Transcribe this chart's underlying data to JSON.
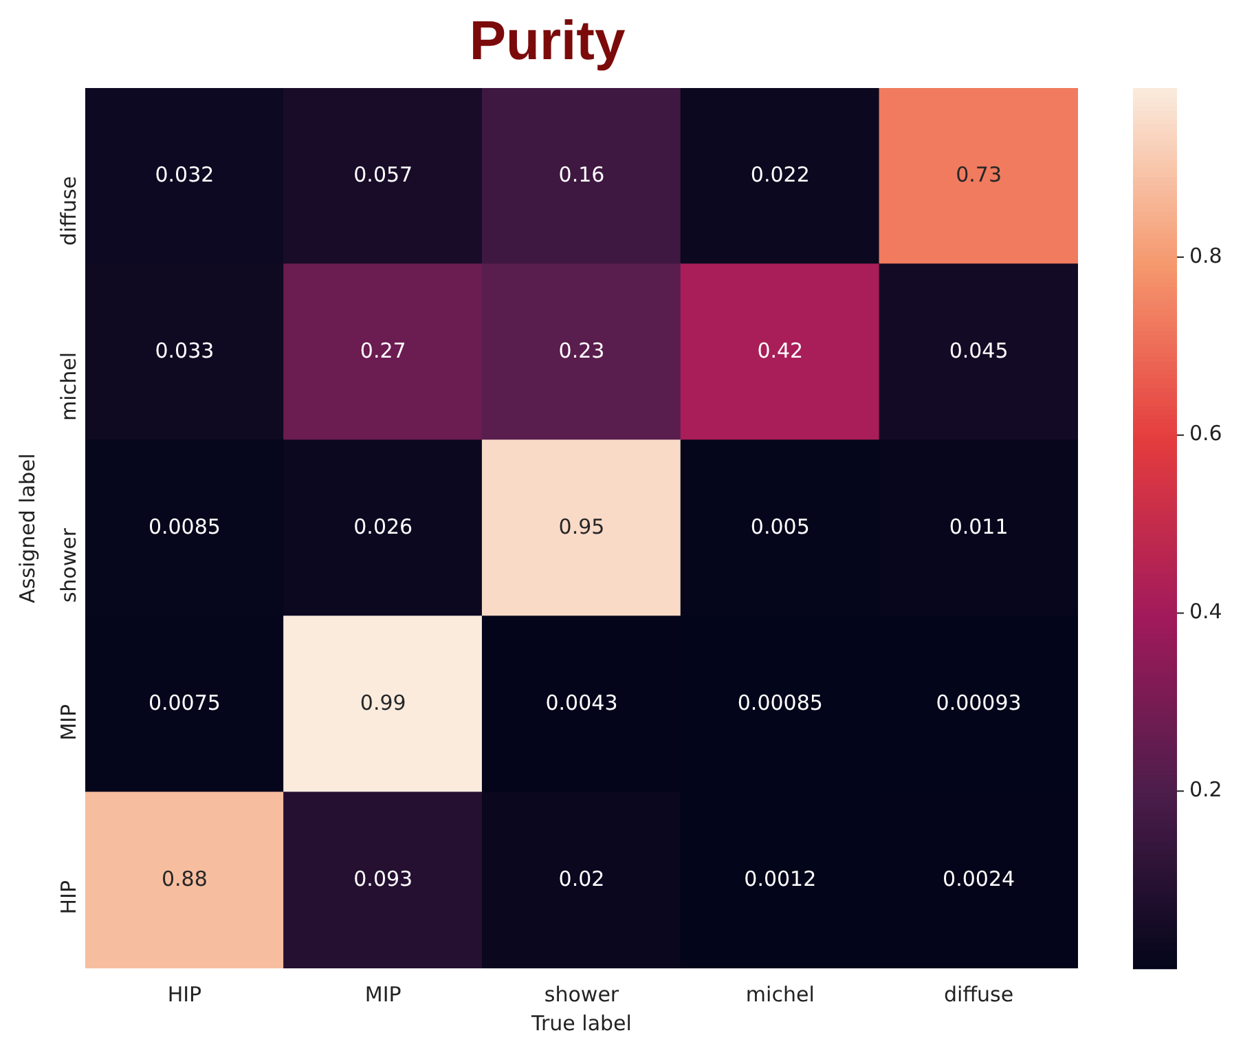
{
  "chart_data": {
    "type": "heatmap",
    "title": "Purity",
    "xlabel": "True label",
    "ylabel": "Assigned label",
    "categories": [
      "HIP",
      "MIP",
      "shower",
      "michel",
      "diffuse"
    ],
    "y_categories": [
      "diffuse",
      "michel",
      "shower",
      "MIP",
      "HIP"
    ],
    "cells": [
      [
        0.032,
        0.057,
        0.16,
        0.022,
        0.73
      ],
      [
        0.033,
        0.27,
        0.23,
        0.42,
        0.045
      ],
      [
        0.0085,
        0.026,
        0.95,
        0.005,
        0.011
      ],
      [
        0.0075,
        0.99,
        0.0043,
        0.00085,
        0.00093
      ],
      [
        0.88,
        0.093,
        0.02,
        0.0012,
        0.0024
      ]
    ],
    "data_labels": true,
    "clim": [
      0.00085,
      0.99
    ],
    "cticks": [
      0.2,
      0.4,
      0.6,
      0.8
    ]
  }
}
